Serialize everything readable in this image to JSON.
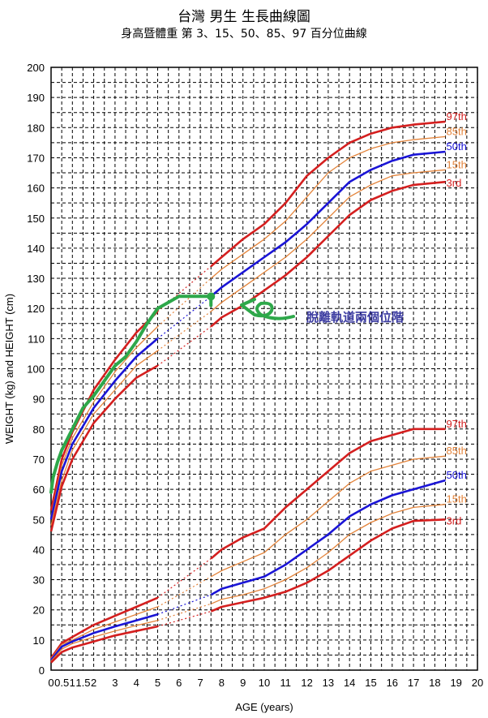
{
  "chart_data": {
    "type": "line",
    "title": "台灣 男生 生長曲線圖",
    "subtitle": "身高暨體重 第 3、15、50、85、97 百分位曲線",
    "xlabel": "AGE (years)",
    "ylabel": "WEIGHT (kg) and HEIGHT (cm)",
    "xlim": [
      0,
      20
    ],
    "ylim": [
      0,
      200
    ],
    "grid": true,
    "x_ticks": [
      "0",
      "0.5",
      "1",
      "1.5",
      "2",
      "3",
      "4",
      "5",
      "6",
      "7",
      "8",
      "9",
      "10",
      "11",
      "12",
      "13",
      "14",
      "15",
      "16",
      "17",
      "18",
      "19",
      "20"
    ],
    "x_tick_values": [
      0,
      0.5,
      1,
      1.5,
      2,
      3,
      4,
      5,
      6,
      7,
      8,
      9,
      10,
      11,
      12,
      13,
      14,
      15,
      16,
      17,
      18,
      19,
      20
    ],
    "y_ticks": [
      "0",
      "10",
      "20",
      "30",
      "40",
      "50",
      "60",
      "70",
      "80",
      "90",
      "100",
      "110",
      "120",
      "130",
      "140",
      "150",
      "160",
      "170",
      "180",
      "190",
      "200"
    ],
    "colors": {
      "p97": "#d41f1f",
      "p85": "#e3833a",
      "p50": "#1a14d6",
      "p15": "#e3833a",
      "p3": "#d41f1f",
      "child": "#2ea84a",
      "annotation": "#3a3aa0"
    },
    "x_early": [
      0,
      0.5,
      1,
      2,
      3,
      4,
      5
    ],
    "x_late": [
      7.5,
      8,
      9,
      10,
      11,
      12,
      13,
      14,
      15,
      16,
      17,
      18.5
    ],
    "series": [
      {
        "name": "97th",
        "kind": "height",
        "color": "p97",
        "early": [
          53,
          70,
          79,
          93,
          103,
          112,
          119
        ],
        "late": [
          134,
          137,
          143,
          148,
          155,
          164,
          170,
          175,
          178,
          180,
          181,
          182
        ]
      },
      {
        "name": "85th",
        "kind": "height",
        "color": "p85",
        "early": [
          51,
          68,
          77,
          89,
          99,
          107,
          114
        ],
        "late": [
          130,
          133,
          138,
          143,
          149,
          157,
          165,
          170,
          173,
          175,
          176,
          177
        ]
      },
      {
        "name": "50th",
        "kind": "height",
        "color": "p50",
        "early": [
          50,
          66,
          75,
          87,
          96,
          104,
          110
        ],
        "late": [
          124,
          127,
          132,
          137,
          142,
          148,
          155,
          162,
          166,
          169,
          171,
          172
        ]
      },
      {
        "name": "15th",
        "kind": "height",
        "color": "p15",
        "early": [
          48,
          63,
          73,
          85,
          93,
          101,
          106
        ],
        "late": [
          119,
          122,
          127,
          132,
          137,
          143,
          150,
          157,
          161,
          164,
          165,
          166
        ]
      },
      {
        "name": "3rd",
        "kind": "height",
        "color": "p3",
        "early": [
          46,
          61,
          70,
          82,
          90,
          97,
          101
        ],
        "late": [
          114,
          117,
          121,
          126,
          131,
          137,
          144,
          151,
          156,
          159,
          161,
          162
        ]
      },
      {
        "name": "97th",
        "kind": "weight",
        "color": "p97",
        "early": [
          4,
          9,
          11,
          15,
          18,
          21,
          24
        ],
        "late": [
          37,
          40,
          44,
          47,
          54,
          60,
          66,
          72,
          76,
          78,
          80,
          80
        ]
      },
      {
        "name": "85th",
        "kind": "weight",
        "color": "p85",
        "early": [
          3.8,
          8.5,
          10,
          13.5,
          16,
          18.5,
          21
        ],
        "late": [
          31,
          33,
          36,
          39,
          45,
          50,
          56,
          62,
          66,
          68,
          70,
          71
        ]
      },
      {
        "name": "50th",
        "kind": "weight",
        "color": "p50",
        "early": [
          3.3,
          7.8,
          9.5,
          12.3,
          14.5,
          16.5,
          18.5
        ],
        "late": [
          25,
          27,
          29,
          31,
          35,
          40,
          45,
          51,
          55,
          58,
          60,
          63
        ]
      },
      {
        "name": "15th",
        "kind": "weight",
        "color": "p15",
        "early": [
          3,
          7,
          8.8,
          11,
          13,
          14.8,
          16.5
        ],
        "late": [
          22,
          23.5,
          25,
          27,
          30,
          34,
          39,
          45,
          49,
          52,
          54,
          55
        ]
      },
      {
        "name": "3rd",
        "kind": "weight",
        "color": "p3",
        "early": [
          2.5,
          6,
          7.5,
          9.5,
          11.5,
          13,
          14.5
        ],
        "late": [
          19.5,
          21,
          22.5,
          24,
          26,
          29,
          33,
          38,
          43,
          47,
          49.5,
          50
        ]
      }
    ],
    "child_height": {
      "x": [
        0,
        0.1,
        0.3,
        0.5,
        1,
        1.5,
        2,
        2.5,
        3,
        3.5,
        4,
        4.5,
        5,
        5.5,
        6,
        6.5,
        7,
        7.5
      ],
      "y": [
        59,
        64,
        69,
        73,
        80,
        87,
        91,
        96,
        101,
        104,
        109,
        115,
        120,
        122,
        124,
        124,
        124,
        124
      ]
    },
    "annotation": "脫離軌道兩個位階"
  }
}
